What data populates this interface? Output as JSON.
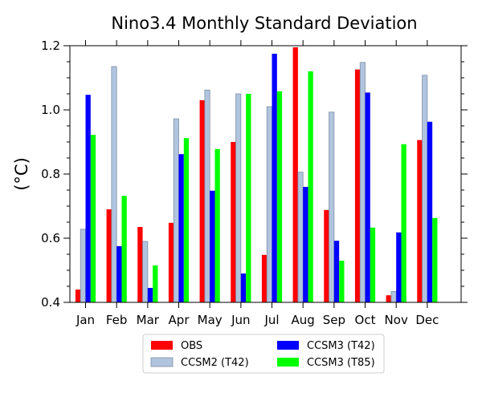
{
  "chart_data": {
    "type": "bar",
    "title": "Nino3.4 Monthly Standard Deviation",
    "xlabel": "",
    "ylabel": "(°C)",
    "ylim": [
      0.4,
      1.2
    ],
    "yticks": [
      "0.4",
      "0.6",
      "0.8",
      "1.0",
      "1.2"
    ],
    "categories": [
      "Jan",
      "Feb",
      "Mar",
      "Apr",
      "May",
      "Jun",
      "Jul",
      "Aug",
      "Sep",
      "Oct",
      "Nov",
      "Dec"
    ],
    "legend_position": "bottom",
    "grid": false,
    "series": [
      {
        "name": "OBS",
        "color": "#ff0000",
        "values": [
          0.44,
          0.69,
          0.635,
          0.648,
          1.03,
          0.9,
          0.548,
          1.195,
          0.688,
          1.126,
          0.422,
          0.906
        ]
      },
      {
        "name": "CCSM2 (T42)",
        "color": "#b0c4de",
        "values": [
          0.628,
          1.135,
          0.59,
          0.972,
          1.062,
          1.05,
          1.01,
          0.806,
          0.993,
          1.148,
          0.434,
          1.108
        ]
      },
      {
        "name": "CCSM3 (T42)",
        "color": "#0000ff",
        "values": [
          1.047,
          0.575,
          0.445,
          0.862,
          0.748,
          0.49,
          1.175,
          0.76,
          0.592,
          1.054,
          0.618,
          0.963
        ]
      },
      {
        "name": "CCSM3 (T85)",
        "color": "#00ff00",
        "values": [
          0.922,
          0.732,
          0.515,
          0.912,
          0.878,
          1.05,
          1.058,
          1.12,
          0.53,
          0.633,
          0.893,
          0.663
        ]
      }
    ]
  }
}
